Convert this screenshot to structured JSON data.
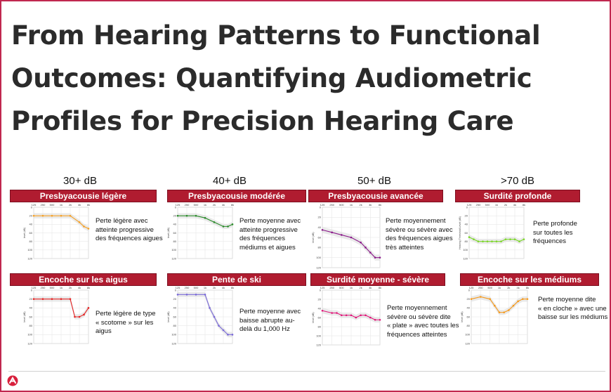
{
  "title": [
    "From Hearing Patterns to Functional",
    "Outcomes: Quantifying Audiometric",
    "Profiles for Precision Hearing Care"
  ],
  "column_headers": [
    "30+ dB",
    "40+ dB",
    "50+ dB",
    ">70 dB"
  ],
  "colors": {
    "banner": "#b01c30",
    "border": "#c0274f",
    "title": "#2b2b2b"
  },
  "panels": [
    {
      "banner": "Presbyacousie  légère",
      "desc": [
        "Perte légère avec",
        "atteinte progressive",
        "des fréquences aigues"
      ]
    },
    {
      "banner": "Presbyacousie modérée",
      "desc": [
        "Perte moyenne avec",
        "atteinte progressive",
        "des fréquences",
        "médiums et aigues"
      ]
    },
    {
      "banner": "Presbyacousie avancée",
      "desc": [
        "Perte moyennement",
        "sévère ou sévère avec",
        "des fréquences aigues",
        "très atteintes"
      ]
    },
    {
      "banner": "Surdité  profonde",
      "desc": [
        "Perte profonde",
        "sur toutes les",
        "fréquences"
      ]
    },
    {
      "banner": "Encoche sur les aigus",
      "desc": [
        "Perte légère de type",
        "« scotome » sur les",
        "aigus"
      ]
    },
    {
      "banner": "Pente de ski",
      "desc": [
        "Perte moyenne avec",
        "baisse abrupte au-",
        "delà du 1,000 Hz"
      ]
    },
    {
      "banner": "Surdité moyenne - sévère",
      "desc": [
        "Perte moyennement",
        "sévère ou sévère dite",
        "« plate » avec toutes les",
        "fréquences atteintes"
      ]
    },
    {
      "banner": "Encoche sur les médiums",
      "desc": [
        "Perte moyenne dite",
        "« en cloche » avec une",
        "baisse sur les médiums"
      ]
    }
  ],
  "chart_data": [
    {
      "type": "line",
      "freq_labels": [
        "125",
        "250",
        "500",
        "1k",
        "2k",
        "4k",
        "8k"
      ],
      "ylim": [
        0,
        120
      ],
      "y_ticks": [
        "0",
        "20",
        "40",
        "60",
        "80",
        "100",
        "120"
      ],
      "ylabel": "level (dB)",
      "color": "#f5a025",
      "x": [
        0,
        1,
        2,
        3,
        4,
        5,
        5.5,
        6
      ],
      "y": [
        20,
        20,
        20,
        20,
        20,
        35,
        45,
        50
      ]
    },
    {
      "type": "line",
      "freq_labels": [
        "125",
        "250",
        "500",
        "1k",
        "2k",
        "4k",
        "8k"
      ],
      "ylim": [
        0,
        120
      ],
      "y_ticks": [
        "0",
        "20",
        "40",
        "60",
        "80",
        "100",
        "120"
      ],
      "ylabel": "level (dB)",
      "color": "#2a8a2a",
      "x": [
        0,
        1,
        2,
        3,
        4,
        5,
        5.5,
        6
      ],
      "y": [
        20,
        20,
        20,
        25,
        35,
        45,
        45,
        40
      ]
    },
    {
      "type": "line",
      "freq_labels": [
        "125",
        "250",
        "500",
        "1k",
        "2k",
        "4k",
        "8k"
      ],
      "ylim": [
        0,
        120
      ],
      "y_ticks": [
        "0",
        "20",
        "40",
        "60",
        "80",
        "100",
        "120"
      ],
      "ylabel": "level (dB)",
      "color": "#8a1a8a",
      "x": [
        0,
        1,
        2,
        3,
        4,
        4.5,
        5,
        5.5,
        6
      ],
      "y": [
        45,
        50,
        55,
        60,
        70,
        80,
        90,
        100,
        100
      ]
    },
    {
      "type": "line",
      "freq_labels": [
        "125",
        "250",
        "500",
        "1k",
        "2k",
        "4k",
        "8k"
      ],
      "ylim": [
        0,
        120
      ],
      "y_ticks": [
        "0",
        "20",
        "40",
        "60",
        "80",
        "100",
        "120"
      ],
      "ylabel": "Hearing Threshold Level (dB)",
      "color": "#7ad627",
      "x": [
        0,
        0.5,
        1,
        1.5,
        2,
        2.5,
        3,
        3.5,
        4,
        4.5,
        5,
        5.5,
        6
      ],
      "y": [
        70,
        75,
        80,
        80,
        80,
        80,
        80,
        80,
        75,
        75,
        75,
        80,
        75
      ]
    },
    {
      "type": "line",
      "freq_labels": [
        "125",
        "250",
        "500",
        "1k",
        "2k",
        "4k",
        "8k"
      ],
      "ylim": [
        0,
        120
      ],
      "y_ticks": [
        "0",
        "20",
        "40",
        "60",
        "80",
        "100",
        "120"
      ],
      "ylabel": "level (dB)",
      "color": "#e52222",
      "x": [
        0,
        1,
        2,
        3,
        4,
        4.5,
        5,
        5.5,
        6
      ],
      "y": [
        20,
        20,
        20,
        20,
        20,
        60,
        60,
        55,
        40
      ]
    },
    {
      "type": "line",
      "freq_labels": [
        "125",
        "250",
        "500",
        "1k",
        "2k",
        "4k",
        "8k"
      ],
      "ylim": [
        0,
        120
      ],
      "y_ticks": [
        "0",
        "20",
        "40",
        "60",
        "80",
        "100",
        "120"
      ],
      "ylabel": "level (dB)",
      "color": "#7a6ad8",
      "x": [
        0,
        1,
        2,
        3,
        3.5,
        4,
        4.5,
        5,
        5.5,
        6
      ],
      "y": [
        10,
        10,
        10,
        10,
        40,
        60,
        80,
        90,
        100,
        100
      ]
    },
    {
      "type": "line",
      "freq_labels": [
        "125",
        "250",
        "500",
        "1k",
        "2k",
        "4k",
        "8k"
      ],
      "ylim": [
        0,
        120
      ],
      "y_ticks": [
        "0",
        "20",
        "40",
        "60",
        "80",
        "100",
        "120"
      ],
      "ylabel": "level (dB)",
      "color": "#e0177a",
      "x": [
        0,
        1,
        1.5,
        2,
        2.5,
        3,
        3.5,
        4,
        4.5,
        5,
        5.5,
        6
      ],
      "y": [
        45,
        50,
        50,
        55,
        55,
        55,
        60,
        55,
        55,
        60,
        65,
        65
      ]
    },
    {
      "type": "line",
      "freq_labels": [
        "125",
        "250",
        "500",
        "1k",
        "2k",
        "4k",
        "8k"
      ],
      "ylim": [
        0,
        120
      ],
      "y_ticks": [
        "0",
        "20",
        "40",
        "60",
        "80",
        "100",
        "120"
      ],
      "ylabel": "level (dB)",
      "color": "#f59a1e",
      "x": [
        0,
        1,
        2,
        2.5,
        3,
        3.5,
        4,
        4.5,
        5,
        5.5,
        6
      ],
      "y": [
        20,
        15,
        20,
        35,
        50,
        50,
        45,
        35,
        25,
        20,
        20
      ]
    }
  ]
}
